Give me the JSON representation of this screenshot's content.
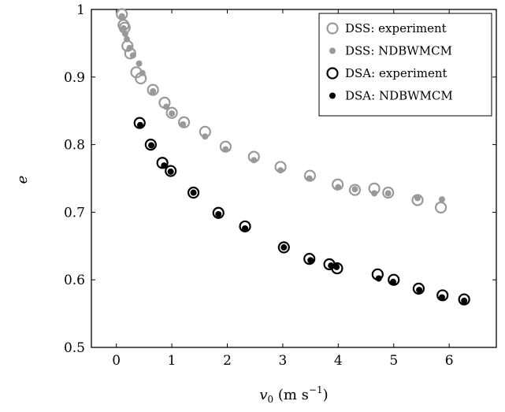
{
  "chart_data": {
    "type": "scatter",
    "xlabel": "v0 (m s−1)",
    "ylabel": "e",
    "xlim": [
      -0.45,
      6.85
    ],
    "ylim": [
      0.5,
      1.0
    ],
    "xticks": [
      0,
      1,
      2,
      3,
      4,
      5,
      6
    ],
    "yticks": [
      0.5,
      0.6,
      0.7,
      0.8,
      0.9,
      1.0
    ],
    "xtick_labels": [
      "0",
      "1",
      "2",
      "3",
      "4",
      "5",
      "6"
    ],
    "ytick_labels": [
      "0.5",
      "0.6",
      "0.7",
      "0.8",
      "0.9",
      "1"
    ],
    "xlabel_parts": {
      "var": "v",
      "sub": "0",
      "unit_open": " (m s",
      "sup": "−1",
      "close": ")"
    },
    "grid": false,
    "legend_position": "top-right",
    "series": [
      {
        "name": "DSS: experiment",
        "marker": "open-circle",
        "color": "#999999",
        "points": [
          [
            0.1,
            0.993
          ],
          [
            0.13,
            0.977
          ],
          [
            0.15,
            0.973
          ],
          [
            0.2,
            0.946
          ],
          [
            0.25,
            0.935
          ],
          [
            0.36,
            0.907
          ],
          [
            0.44,
            0.898
          ],
          [
            0.66,
            0.881
          ],
          [
            0.87,
            0.862
          ],
          [
            1.0,
            0.847
          ],
          [
            1.22,
            0.833
          ],
          [
            1.6,
            0.819
          ],
          [
            1.97,
            0.797
          ],
          [
            2.48,
            0.782
          ],
          [
            2.96,
            0.767
          ],
          [
            3.49,
            0.754
          ],
          [
            3.99,
            0.741
          ],
          [
            4.3,
            0.733
          ],
          [
            4.65,
            0.735
          ],
          [
            4.9,
            0.729
          ],
          [
            5.43,
            0.718
          ],
          [
            5.85,
            0.707
          ]
        ]
      },
      {
        "name": "DSS: NDBWMCM",
        "marker": "filled-circle",
        "color": "#999999",
        "points": [
          [
            0.1,
            0.99
          ],
          [
            0.13,
            0.972
          ],
          [
            0.16,
            0.964
          ],
          [
            0.19,
            0.956
          ],
          [
            0.24,
            0.943
          ],
          [
            0.3,
            0.932
          ],
          [
            0.41,
            0.92
          ],
          [
            0.47,
            0.906
          ],
          [
            0.66,
            0.879
          ],
          [
            0.9,
            0.856
          ],
          [
            1.0,
            0.846
          ],
          [
            1.2,
            0.83
          ],
          [
            1.6,
            0.812
          ],
          [
            1.97,
            0.793
          ],
          [
            2.48,
            0.777
          ],
          [
            2.96,
            0.762
          ],
          [
            3.48,
            0.75
          ],
          [
            4.0,
            0.737
          ],
          [
            4.3,
            0.734
          ],
          [
            4.65,
            0.728
          ],
          [
            4.9,
            0.728
          ],
          [
            5.43,
            0.721
          ],
          [
            5.87,
            0.719
          ]
        ]
      },
      {
        "name": "DSA: experiment",
        "marker": "open-circle",
        "color": "#000000",
        "points": [
          [
            0.42,
            0.832
          ],
          [
            0.62,
            0.8
          ],
          [
            0.83,
            0.773
          ],
          [
            0.98,
            0.761
          ],
          [
            1.39,
            0.729
          ],
          [
            1.84,
            0.699
          ],
          [
            2.32,
            0.679
          ],
          [
            3.02,
            0.648
          ],
          [
            3.48,
            0.631
          ],
          [
            3.84,
            0.623
          ],
          [
            3.98,
            0.617
          ],
          [
            4.71,
            0.608
          ],
          [
            5.0,
            0.6
          ],
          [
            5.45,
            0.587
          ],
          [
            5.88,
            0.577
          ],
          [
            6.27,
            0.571
          ]
        ]
      },
      {
        "name": "DSA: NDBWMCM",
        "marker": "filled-circle",
        "color": "#000000",
        "points": [
          [
            0.43,
            0.829
          ],
          [
            0.63,
            0.799
          ],
          [
            0.86,
            0.769
          ],
          [
            0.98,
            0.76
          ],
          [
            1.39,
            0.729
          ],
          [
            1.84,
            0.697
          ],
          [
            2.32,
            0.676
          ],
          [
            3.02,
            0.648
          ],
          [
            3.5,
            0.629
          ],
          [
            3.87,
            0.621
          ],
          [
            3.97,
            0.619
          ],
          [
            4.73,
            0.602
          ],
          [
            4.99,
            0.597
          ],
          [
            5.46,
            0.585
          ],
          [
            5.87,
            0.574
          ],
          [
            6.27,
            0.569
          ]
        ]
      }
    ]
  }
}
